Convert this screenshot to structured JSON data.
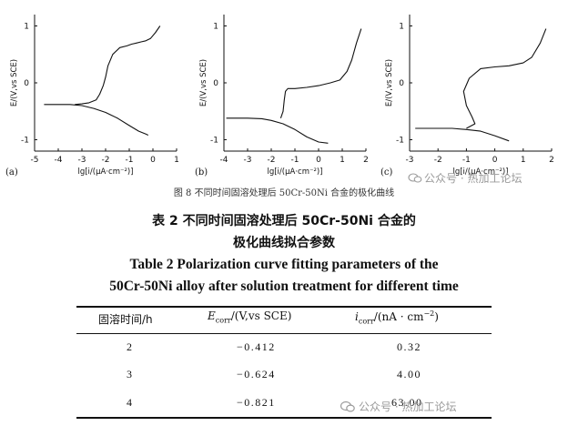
{
  "figure": {
    "caption": "图 8   不同时间固溶处理后 50Cr-50Ni 合金的极化曲线",
    "watermark": "公众号 · 热加工论坛",
    "ylabel": "E/(V,vs SCE)",
    "xlabel": "lg[i/(μA·cm⁻²)]",
    "panels": [
      {
        "letter": "(a)",
        "xticks": [
          "-5",
          "-4",
          "-3",
          "-2",
          "-1",
          "0",
          "1"
        ],
        "yticks": [
          "1",
          "0",
          "-1"
        ]
      },
      {
        "letter": "(b)",
        "xticks": [
          "-4",
          "-3",
          "-2",
          "-1",
          "0",
          "1",
          "2"
        ],
        "yticks": [
          "1",
          "0",
          "-1"
        ]
      },
      {
        "letter": "(c)",
        "xticks": [
          "-3",
          "-2",
          "-1",
          "0",
          "1",
          "2"
        ],
        "yticks": [
          "1",
          "0",
          "-1"
        ]
      }
    ]
  },
  "chart_data": [
    {
      "type": "line",
      "panel": "(a)",
      "xlim": [
        -5,
        1
      ],
      "ylim": [
        -1.2,
        1.2
      ],
      "xlabel": "lg[i/(μA·cm⁻²)]",
      "ylabel": "E/(V,vs SCE)",
      "series": [
        {
          "x": [
            -3.3,
            -3.0,
            -2.7,
            -2.4,
            -2.25,
            -2.1,
            -2.0,
            -1.9,
            -1.7,
            -1.4,
            -1.1,
            -0.9,
            -0.7,
            -0.5,
            -0.3,
            -0.1,
            0.1,
            0.3
          ],
          "y": [
            -0.38,
            -0.37,
            -0.35,
            -0.3,
            -0.2,
            -0.05,
            0.1,
            0.3,
            0.5,
            0.62,
            0.65,
            0.68,
            0.7,
            0.72,
            0.74,
            0.78,
            0.88,
            1.0
          ]
        },
        {
          "x": [
            -4.6,
            -3.5,
            -3.0,
            -2.5,
            -2.0,
            -1.5,
            -1.0,
            -0.6,
            -0.3,
            -0.2
          ],
          "y": [
            -0.38,
            -0.38,
            -0.4,
            -0.45,
            -0.52,
            -0.62,
            -0.75,
            -0.85,
            -0.9,
            -0.92
          ]
        }
      ]
    },
    {
      "type": "line",
      "panel": "(b)",
      "xlim": [
        -4,
        2
      ],
      "ylim": [
        -1.2,
        1.2
      ],
      "xlabel": "lg[i/(μA·cm⁻²)]",
      "ylabel": "E/(V,vs SCE)",
      "series": [
        {
          "x": [
            -1.6,
            -1.5,
            -1.45,
            -1.4,
            -1.3,
            -1.0,
            -0.5,
            0.0,
            0.5,
            0.9,
            1.2,
            1.4,
            1.6,
            1.8
          ],
          "y": [
            -0.62,
            -0.5,
            -0.3,
            -0.15,
            -0.1,
            -0.1,
            -0.08,
            -0.05,
            0.0,
            0.05,
            0.2,
            0.4,
            0.7,
            0.95
          ]
        },
        {
          "x": [
            -3.9,
            -3.0,
            -2.4,
            -2.0,
            -1.5,
            -1.0,
            -0.5,
            0.0,
            0.4
          ],
          "y": [
            -0.62,
            -0.62,
            -0.63,
            -0.66,
            -0.72,
            -0.82,
            -0.95,
            -1.04,
            -1.06
          ]
        }
      ]
    },
    {
      "type": "line",
      "panel": "(c)",
      "xlim": [
        -3,
        2
      ],
      "ylim": [
        -1.2,
        1.2
      ],
      "xlabel": "lg[i/(μA·cm⁻²)]",
      "ylabel": "E/(V,vs SCE)",
      "series": [
        {
          "x": [
            -1.0,
            -0.7,
            -0.8,
            -1.0,
            -1.1,
            -0.9,
            -0.5,
            0.0,
            0.5,
            1.0,
            1.3,
            1.6,
            1.8
          ],
          "y": [
            -0.8,
            -0.72,
            -0.6,
            -0.4,
            -0.15,
            0.08,
            0.25,
            0.28,
            0.3,
            0.35,
            0.45,
            0.7,
            0.95
          ]
        },
        {
          "x": [
            -2.8,
            -2.0,
            -1.5,
            -1.0,
            -0.5,
            0.0,
            0.5
          ],
          "y": [
            -0.8,
            -0.8,
            -0.8,
            -0.82,
            -0.85,
            -0.93,
            -1.02
          ]
        }
      ]
    }
  ],
  "table": {
    "title_cn_line1": "表 2   不同时间固溶处理后 50Cr-50Ni 合金的",
    "title_cn_line2": "极化曲线拟合参数",
    "title_en_line1": "Table 2   Polarization curve fitting parameters of the",
    "title_en_line2": "50Cr-50Ni alloy after solution treatment for different time",
    "headers": [
      "固溶时间/h",
      "E_corr/(V,vs SCE)",
      "i_corr/(nA · cm⁻²)"
    ],
    "header_parts": {
      "e_sym": "E",
      "e_sub": "corr",
      "e_unit": "/(V,vs SCE)",
      "i_sym": "i",
      "i_sub": "corr",
      "i_unit": "/(nA · cm",
      "i_sup": "−2",
      "i_close": ")"
    },
    "rows": [
      {
        "time": "2",
        "ecorr": "−0.412",
        "icorr": "0.32"
      },
      {
        "time": "3",
        "ecorr": "−0.624",
        "icorr": "4.00"
      },
      {
        "time": "4",
        "ecorr": "−0.821",
        "icorr": "63.00"
      }
    ]
  }
}
